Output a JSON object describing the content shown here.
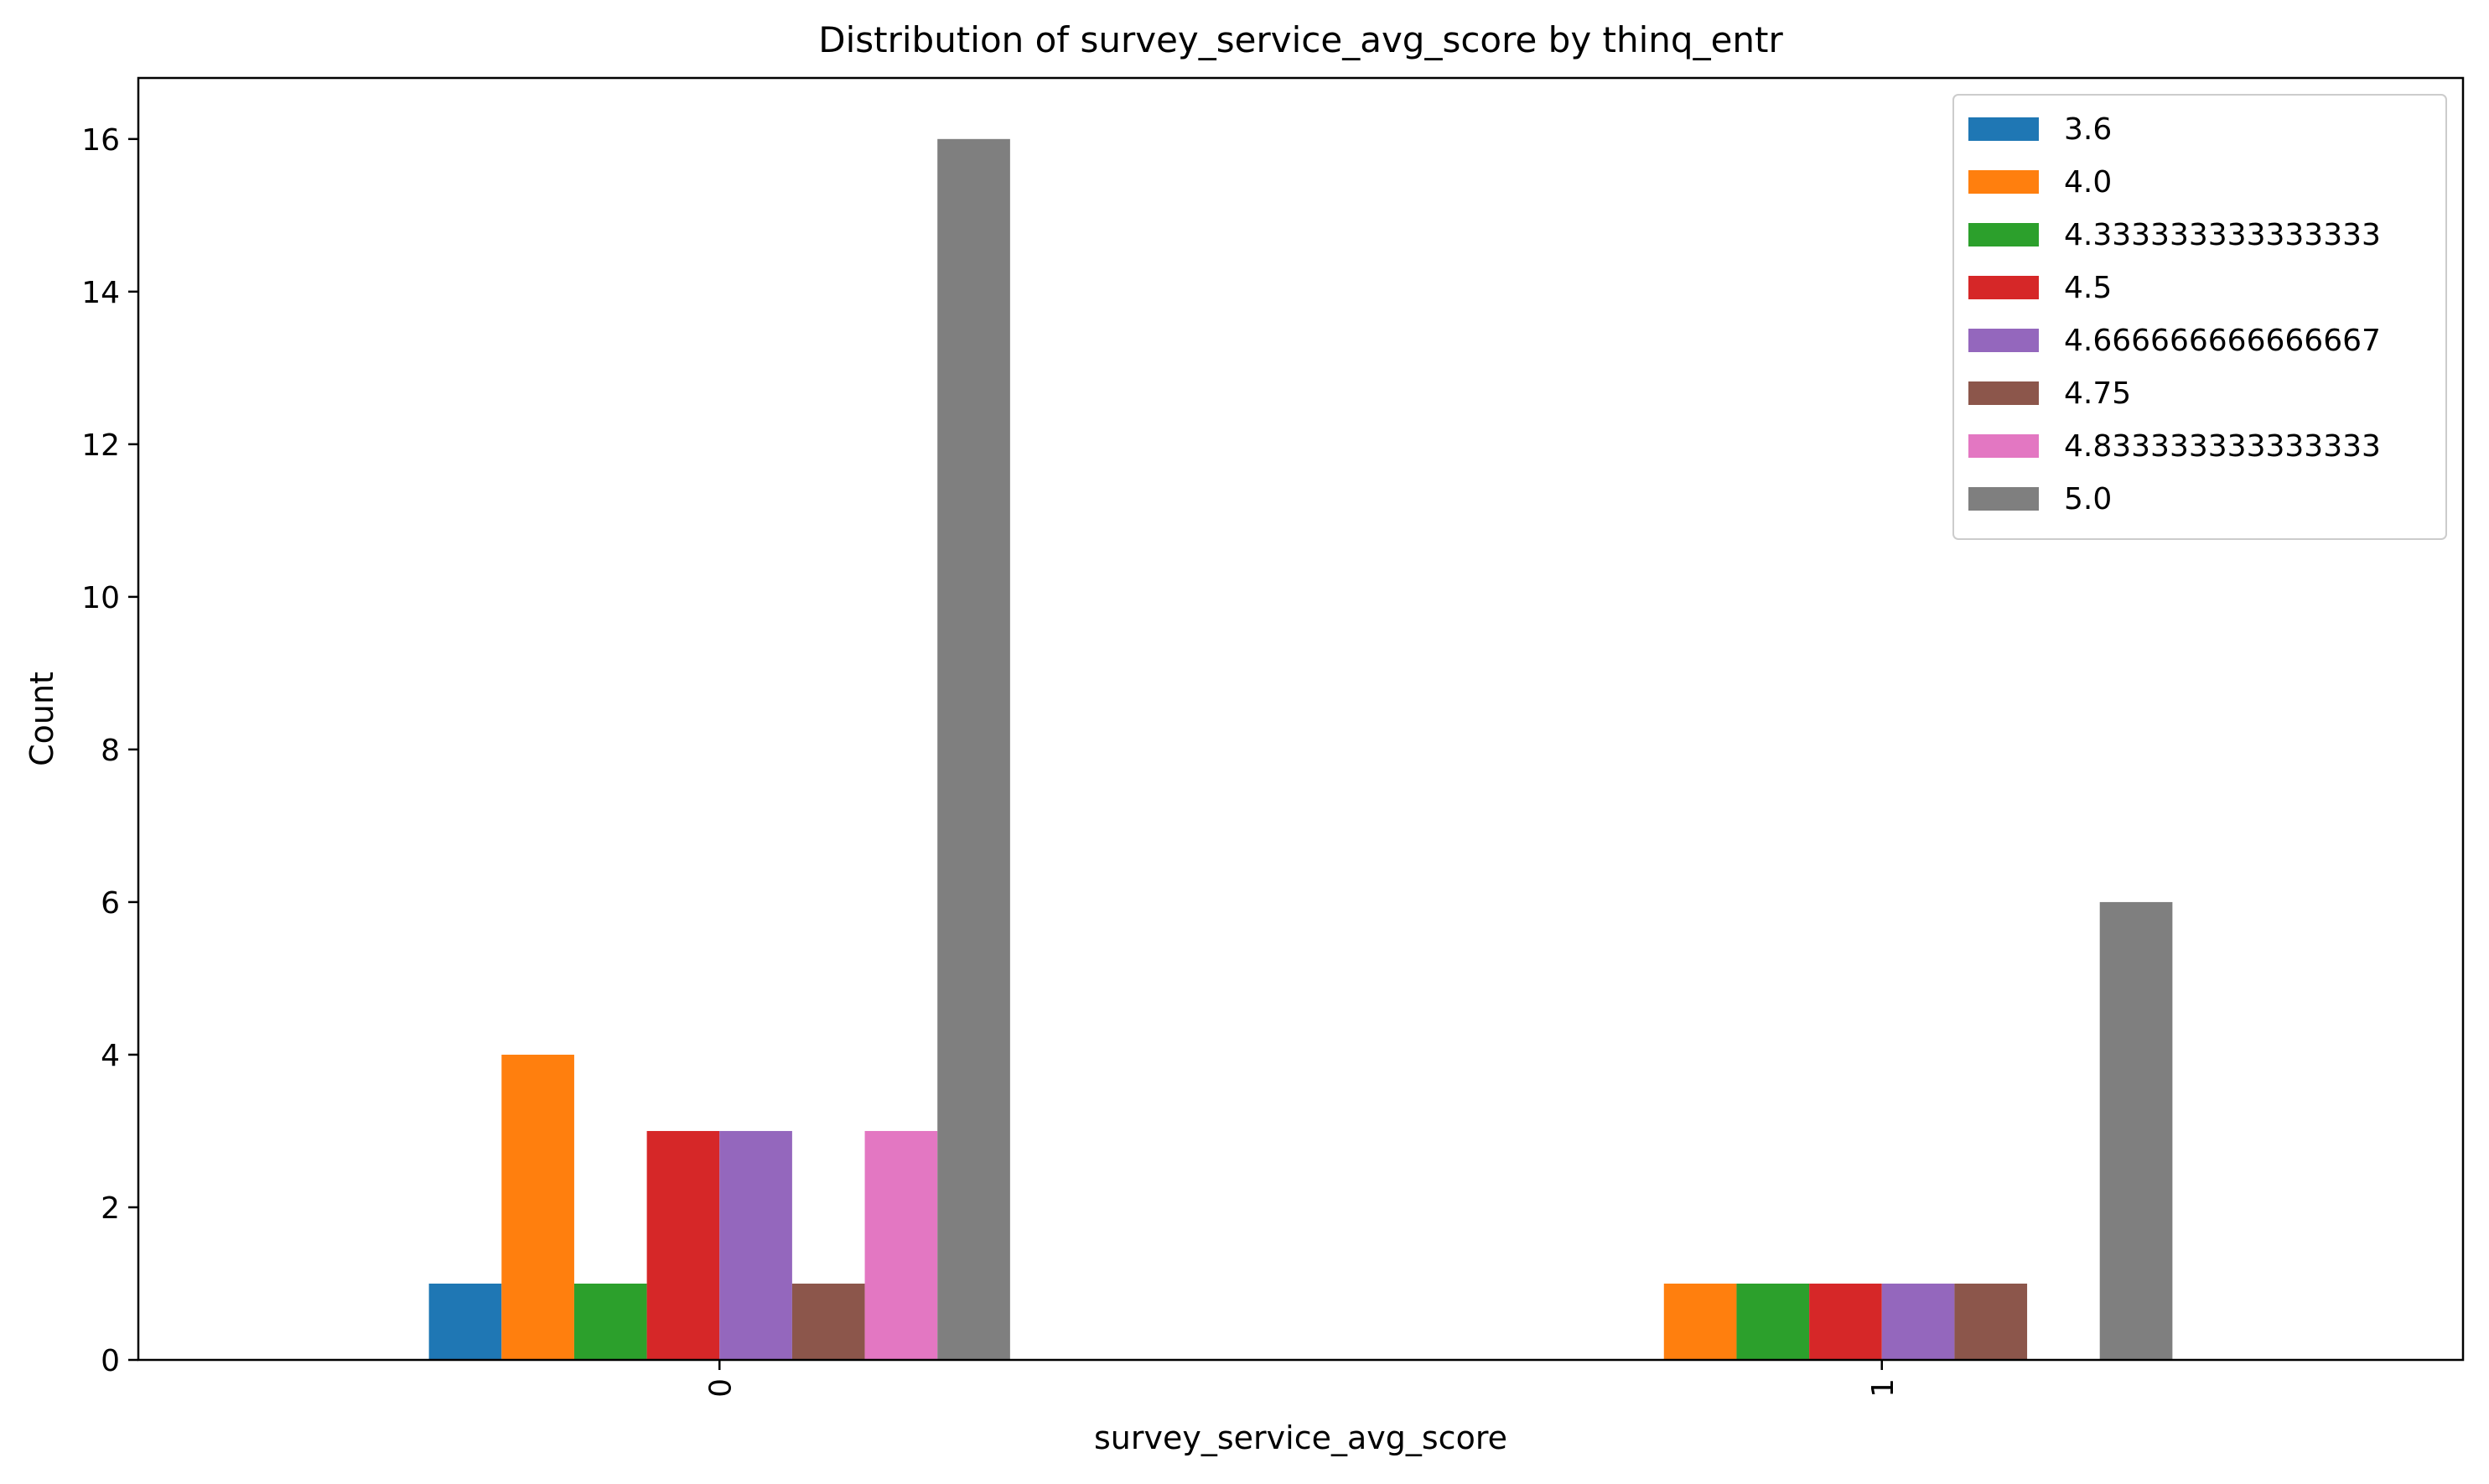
{
  "chart_data": {
    "type": "bar",
    "title": "Distribution of survey_service_avg_score by thinq_entr",
    "xlabel": "survey_service_avg_score",
    "ylabel": "Count",
    "categories": [
      "0",
      "1"
    ],
    "ylim": [
      0,
      16.8
    ],
    "yticks": [
      0,
      2,
      4,
      6,
      8,
      10,
      12,
      14,
      16
    ],
    "grid": false,
    "legend_position": "top-right",
    "series": [
      {
        "name": "3.6",
        "color": "#1f77b4",
        "values": [
          1,
          0
        ]
      },
      {
        "name": "4.0",
        "color": "#ff7f0e",
        "values": [
          4,
          1
        ]
      },
      {
        "name": "4.333333333333333",
        "color": "#2ca02c",
        "values": [
          1,
          1
        ]
      },
      {
        "name": "4.5",
        "color": "#d62728",
        "values": [
          3,
          1
        ]
      },
      {
        "name": "4.666666666666667",
        "color": "#9467bd",
        "values": [
          3,
          1
        ]
      },
      {
        "name": "4.75",
        "color": "#8c564b",
        "values": [
          1,
          1
        ]
      },
      {
        "name": "4.833333333333333",
        "color": "#e377c2",
        "values": [
          3,
          0
        ]
      },
      {
        "name": "5.0",
        "color": "#7f7f7f",
        "values": [
          16,
          6
        ]
      }
    ]
  }
}
